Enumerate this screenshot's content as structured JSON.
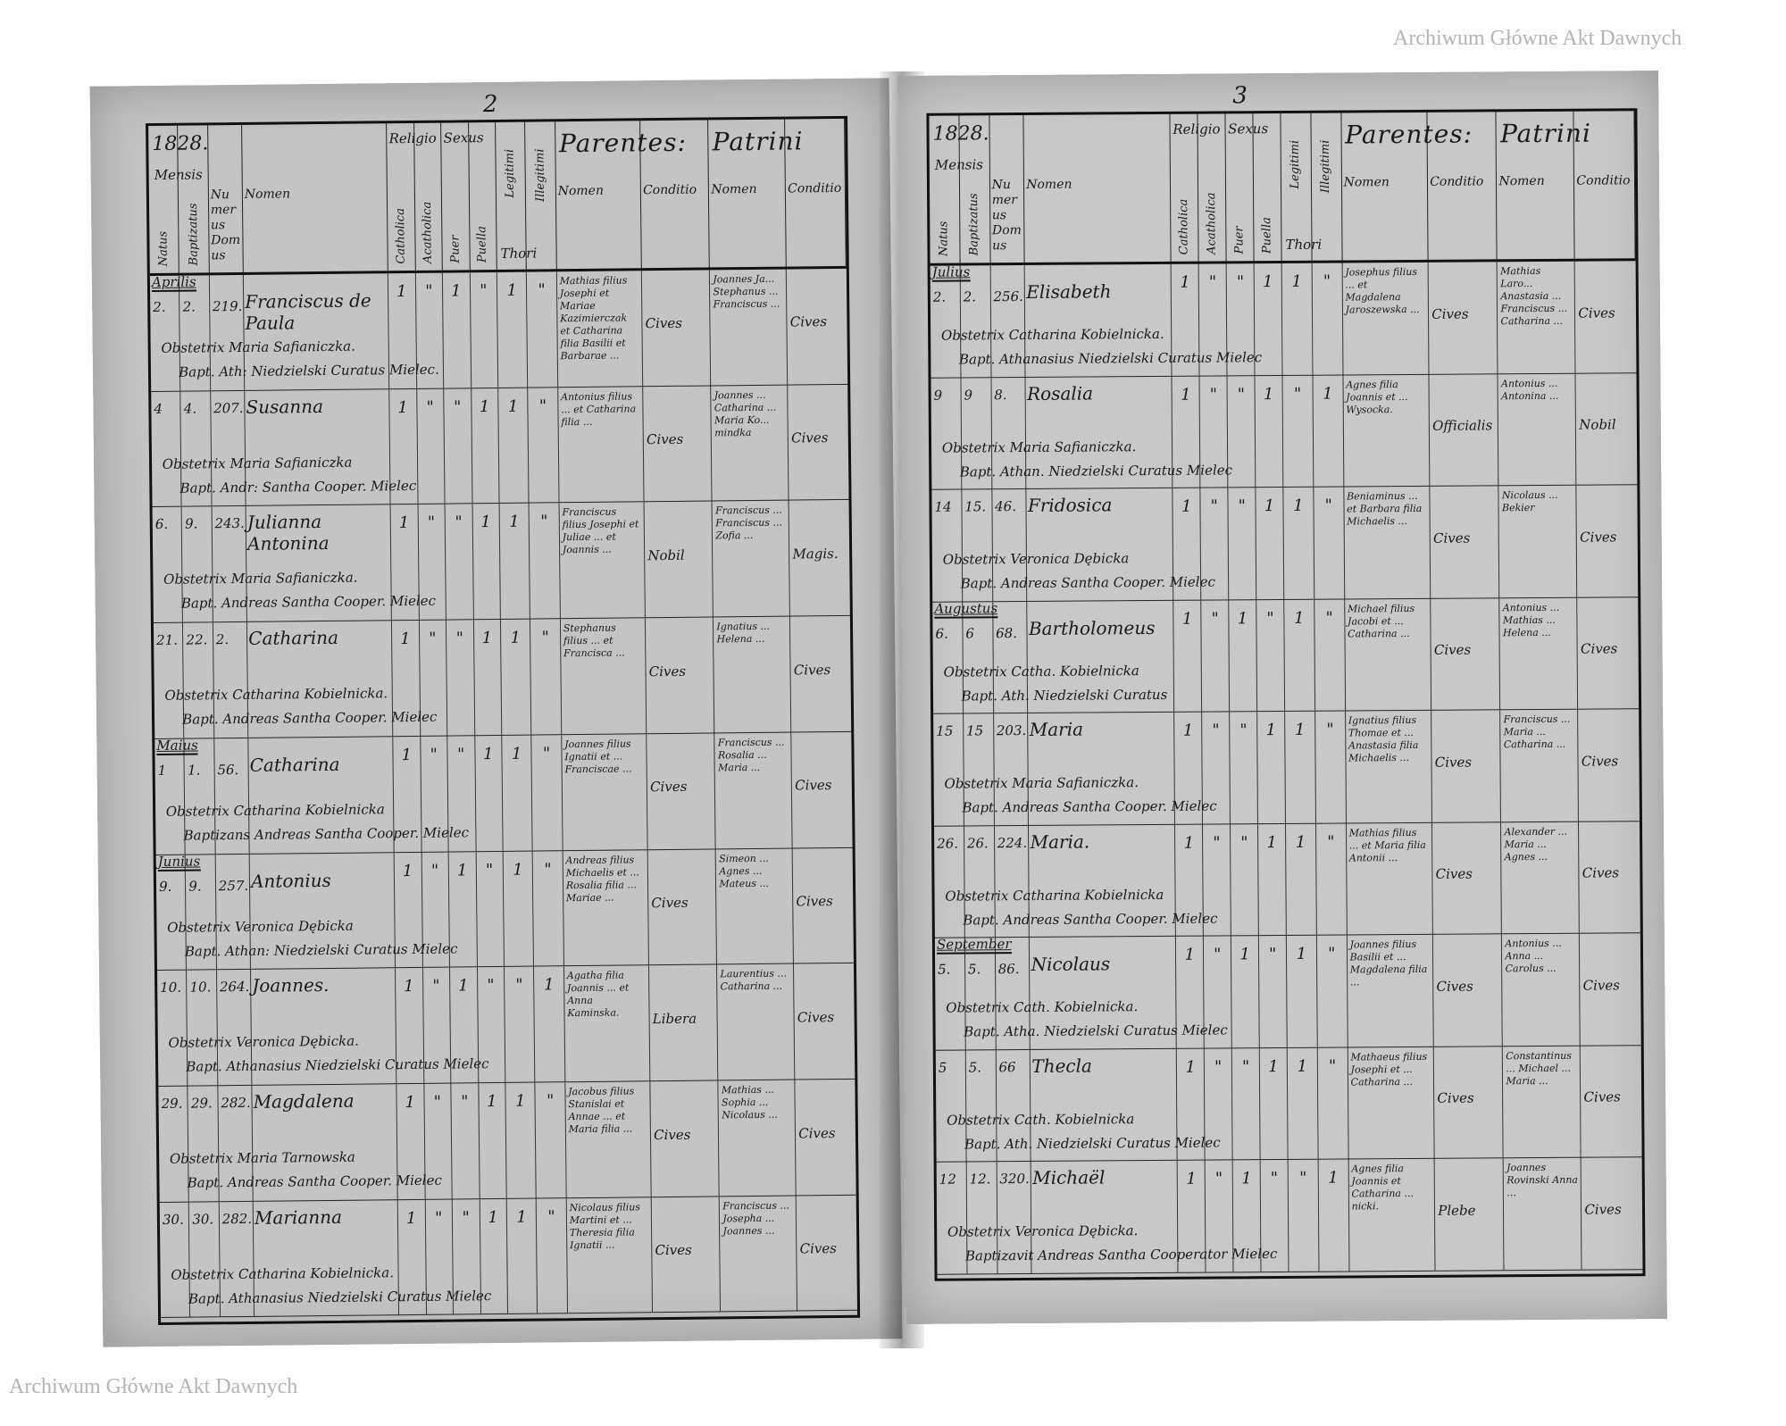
{
  "watermark": "Archiwum Główne Akt Dawnych",
  "header": {
    "year": "1828.",
    "mensis": "Mensis",
    "natus": "Natus",
    "baptizatus": "Baptizatus",
    "numerus_domus": "Numerus Domus",
    "nomen": "Nomen",
    "religio": "Religio",
    "catholica": "Catholica",
    "acatholica": "Acatholica",
    "sexus": "Sexus",
    "puer": "Puer",
    "puella": "Puella",
    "legitimi": "Legitimi",
    "illegitimi": "Illegitimi",
    "thori": "Thori",
    "parentes": "Parentes:",
    "patrini": "Patrini",
    "parentes_nomen": "Nomen",
    "parentes_conditio": "Conditio",
    "patrini_nomen": "Nomen",
    "patrini_conditio": "Conditio"
  },
  "left_page": {
    "page_number": "2",
    "rows": [
      {
        "month": "Aprilis",
        "natus": "2.",
        "bapt": "2.",
        "domus": "219.",
        "name": "Franciscus de Paula",
        "obstetrix": "Obstetrix Maria Safianiczka.",
        "baptizans": "Bapt. Ath: Niedzielski Curatus Mielec.",
        "marks": [
          "1",
          "\"",
          "1",
          "\"",
          "1",
          "\""
        ],
        "parents": "Mathias filius Josephi et Mariae Kazimierczak et Catharina filia Basilii et Barbarae ...",
        "parents_cond": "Cives",
        "patrini": "Joannes Ja... Stephanus ... Franciscus ...",
        "patrini_cond": "Cives"
      },
      {
        "month": "",
        "natus": "4",
        "bapt": "4.",
        "domus": "207.",
        "name": "Susanna",
        "obstetrix": "Obstetrix Maria Safianiczka",
        "baptizans": "Bapt. Andr: Santha Cooper. Mielec",
        "marks": [
          "1",
          "\"",
          "\"",
          "1",
          "1",
          "\""
        ],
        "parents": "Antonius filius ... et Catharina filia ...",
        "parents_cond": "Cives",
        "patrini": "Joannes ... Catharina ... Maria Ko... mindka",
        "patrini_cond": "Cives"
      },
      {
        "month": "",
        "natus": "6.",
        "bapt": "9.",
        "domus": "243.",
        "name": "Julianna Antonina",
        "obstetrix": "Obstetrix Maria Safianiczka.",
        "baptizans": "Bapt. Andreas Santha Cooper. Mielec",
        "marks": [
          "1",
          "\"",
          "\"",
          "1",
          "1",
          "\""
        ],
        "parents": "Franciscus filius Josephi et Juliae ... et Joannis ...",
        "parents_cond": "Nobil",
        "patrini": "Franciscus ... Franciscus ... Zofia ...",
        "patrini_cond": "Magis."
      },
      {
        "month": "",
        "natus": "21.",
        "bapt": "22.",
        "domus": "2.",
        "name": "Catharina",
        "obstetrix": "Obstetrix Catharina Kobielnicka.",
        "baptizans": "Bapt. Andreas Santha Cooper. Mielec",
        "marks": [
          "1",
          "\"",
          "\"",
          "1",
          "1",
          "\""
        ],
        "parents": "Stephanus filius ... et Francisca ...",
        "parents_cond": "Cives",
        "patrini": "Ignatius ... Helena ...",
        "patrini_cond": "Cives"
      },
      {
        "month": "Maius",
        "natus": "1",
        "bapt": "1.",
        "domus": "56.",
        "name": "Catharina",
        "obstetrix": "Obstetrix Catharina Kobielnicka",
        "baptizans": "Baptizans Andreas Santha Cooper. Mielec",
        "marks": [
          "1",
          "\"",
          "\"",
          "1",
          "1",
          "\""
        ],
        "parents": "Joannes filius Ignatii et ... Franciscae ...",
        "parents_cond": "Cives",
        "patrini": "Franciscus ... Rosalia ... Maria ...",
        "patrini_cond": "Cives"
      },
      {
        "month": "Junius",
        "natus": "9.",
        "bapt": "9.",
        "domus": "257.",
        "name": "Antonius",
        "obstetrix": "Obstetrix Veronica Dębicka",
        "baptizans": "Bapt. Athan: Niedzielski Curatus Mielec",
        "marks": [
          "1",
          "\"",
          "1",
          "\"",
          "1",
          "\""
        ],
        "parents": "Andreas filius Michaelis et ... Rosalia filia ... Mariae ...",
        "parents_cond": "Cives",
        "patrini": "Simeon ... Agnes ... Mateus ...",
        "patrini_cond": "Cives"
      },
      {
        "month": "",
        "natus": "10.",
        "bapt": "10.",
        "domus": "264.",
        "name": "Joannes.",
        "obstetrix": "Obstetrix Veronica Dębicka.",
        "baptizans": "Bapt. Athanasius Niedzielski Curatus Mielec",
        "marks": [
          "1",
          "\"",
          "1",
          "\"",
          "\"",
          "1"
        ],
        "parents": "Agatha filia Joannis ... et Anna Kaminska.",
        "parents_cond": "Libera",
        "patrini": "Laurentius ... Catharina ...",
        "patrini_cond": "Cives"
      },
      {
        "month": "",
        "natus": "29.",
        "bapt": "29.",
        "domus": "282.",
        "name": "Magdalena",
        "obstetrix": "Obstetrix Maria Tarnowska",
        "baptizans": "Bapt. Andreas Santha Cooper. Mielec",
        "marks": [
          "1",
          "\"",
          "\"",
          "1",
          "1",
          "\""
        ],
        "parents": "Jacobus filius Stanislai et Annae ... et Maria filia ...",
        "parents_cond": "Cives",
        "patrini": "Mathias ... Sophia ... Nicolaus ...",
        "patrini_cond": "Cives"
      },
      {
        "month": "",
        "natus": "30.",
        "bapt": "30.",
        "domus": "282.",
        "name": "Marianna",
        "obstetrix": "Obstetrix Catharina Kobielnicka.",
        "baptizans": "Bapt. Athanasius Niedzielski Curatus Mielec",
        "marks": [
          "1",
          "\"",
          "\"",
          "1",
          "1",
          "\""
        ],
        "parents": "Nicolaus filius Martini et ... Theresia filia Ignatii ...",
        "parents_cond": "Cives",
        "patrini": "Franciscus ... Josepha ... Joannes ...",
        "patrini_cond": "Cives"
      }
    ]
  },
  "right_page": {
    "page_number": "3",
    "rows": [
      {
        "month": "Julius",
        "natus": "2.",
        "bapt": "2.",
        "domus": "256.",
        "name": "Elisabeth",
        "obstetrix": "Obstetrix Catharina Kobielnicka.",
        "baptizans": "Bapt. Athanasius Niedzielski Curatus Mielec",
        "marks": [
          "1",
          "\"",
          "\"",
          "1",
          "1",
          "\""
        ],
        "parents": "Josephus filius ... et Magdalena Jaroszewska ...",
        "parents_cond": "Cives",
        "patrini": "Mathias Laro... Anastasia ... Franciscus ... Catharina ...",
        "patrini_cond": "Cives"
      },
      {
        "month": "",
        "natus": "9",
        "bapt": "9",
        "domus": "8.",
        "name": "Rosalia",
        "obstetrix": "Obstetrix Maria Safianiczka.",
        "baptizans": "Bapt. Athan. Niedzielski Curatus Mielec",
        "marks": [
          "1",
          "\"",
          "\"",
          "1",
          "\"",
          "1"
        ],
        "parents": "Agnes filia Joannis et ... Wysocka.",
        "parents_cond": "Officialis",
        "patrini": "Antonius ... Antonina ...",
        "patrini_cond": "Nobil"
      },
      {
        "month": "",
        "natus": "14",
        "bapt": "15.",
        "domus": "46.",
        "name": "Fridosica",
        "obstetrix": "Obstetrix Veronica Dębicka",
        "baptizans": "Bapt. Andreas Santha Cooper. Mielec",
        "marks": [
          "1",
          "\"",
          "\"",
          "1",
          "1",
          "\""
        ],
        "parents": "Beniaminus ... et Barbara filia Michaelis ...",
        "parents_cond": "Cives",
        "patrini": "Nicolaus ... Bekier",
        "patrini_cond": "Cives"
      },
      {
        "month": "Augustus",
        "natus": "6.",
        "bapt": "6",
        "domus": "68.",
        "name": "Bartholomeus",
        "obstetrix": "Obstetrix Catha. Kobielnicka",
        "baptizans": "Bapt. Ath. Niedzielski Curatus",
        "marks": [
          "1",
          "\"",
          "1",
          "\"",
          "1",
          "\""
        ],
        "parents": "Michael filius Jacobi et ... Catharina ...",
        "parents_cond": "Cives",
        "patrini": "Antonius ... Mathias ... Helena ...",
        "patrini_cond": "Cives"
      },
      {
        "month": "",
        "natus": "15",
        "bapt": "15",
        "domus": "203.",
        "name": "Maria",
        "obstetrix": "Obstetrix Maria Safianiczka.",
        "baptizans": "Bapt. Andreas Santha Cooper. Mielec",
        "marks": [
          "1",
          "\"",
          "\"",
          "1",
          "1",
          "\""
        ],
        "parents": "Ignatius filius Thomae et ... Anastasia filia Michaelis ...",
        "parents_cond": "Cives",
        "patrini": "Franciscus ... Maria ... Catharina ...",
        "patrini_cond": "Cives"
      },
      {
        "month": "",
        "natus": "26.",
        "bapt": "26.",
        "domus": "224.",
        "name": "Maria.",
        "obstetrix": "Obstetrix Catharina Kobielnicka",
        "baptizans": "Bapt. Andreas Santha Cooper. Mielec",
        "marks": [
          "1",
          "\"",
          "\"",
          "1",
          "1",
          "\""
        ],
        "parents": "Mathias filius ... et Maria filia Antonii ...",
        "parents_cond": "Cives",
        "patrini": "Alexander ... Maria ... Agnes ...",
        "patrini_cond": "Cives"
      },
      {
        "month": "September",
        "natus": "5.",
        "bapt": "5.",
        "domus": "86.",
        "name": "Nicolaus",
        "obstetrix": "Obstetrix Cath. Kobielnicka.",
        "baptizans": "Bapt. Atha. Niedzielski Curatus Mielec",
        "marks": [
          "1",
          "\"",
          "1",
          "\"",
          "1",
          "\""
        ],
        "parents": "Joannes filius Basilii et ... Magdalena filia ...",
        "parents_cond": "Cives",
        "patrini": "Antonius ... Anna ... Carolus ...",
        "patrini_cond": "Cives"
      },
      {
        "month": "",
        "natus": "5",
        "bapt": "5.",
        "domus": "66",
        "name": "Thecla",
        "obstetrix": "Obstetrix Cath. Kobielnicka",
        "baptizans": "Bapt. Ath. Niedzielski Curatus Mielec",
        "marks": [
          "1",
          "\"",
          "\"",
          "1",
          "1",
          "\""
        ],
        "parents": "Mathaeus filius Josephi et ... Catharina ...",
        "parents_cond": "Cives",
        "patrini": "Constantinus ... Michael ... Maria ...",
        "patrini_cond": "Cives"
      },
      {
        "month": "",
        "natus": "12",
        "bapt": "12.",
        "domus": "320.",
        "name": "Michaël",
        "obstetrix": "Obstetrix Veronica Dębicka.",
        "baptizans": "Baptizavit Andreas Santha Cooperator Mielec",
        "marks": [
          "1",
          "\"",
          "1",
          "\"",
          "\"",
          "1"
        ],
        "parents": "Agnes filia Joannis et Catharina ... nicki.",
        "parents_cond": "Plebe",
        "patrini": "Joannes Rovinski Anna ...",
        "patrini_cond": "Cives"
      }
    ]
  }
}
